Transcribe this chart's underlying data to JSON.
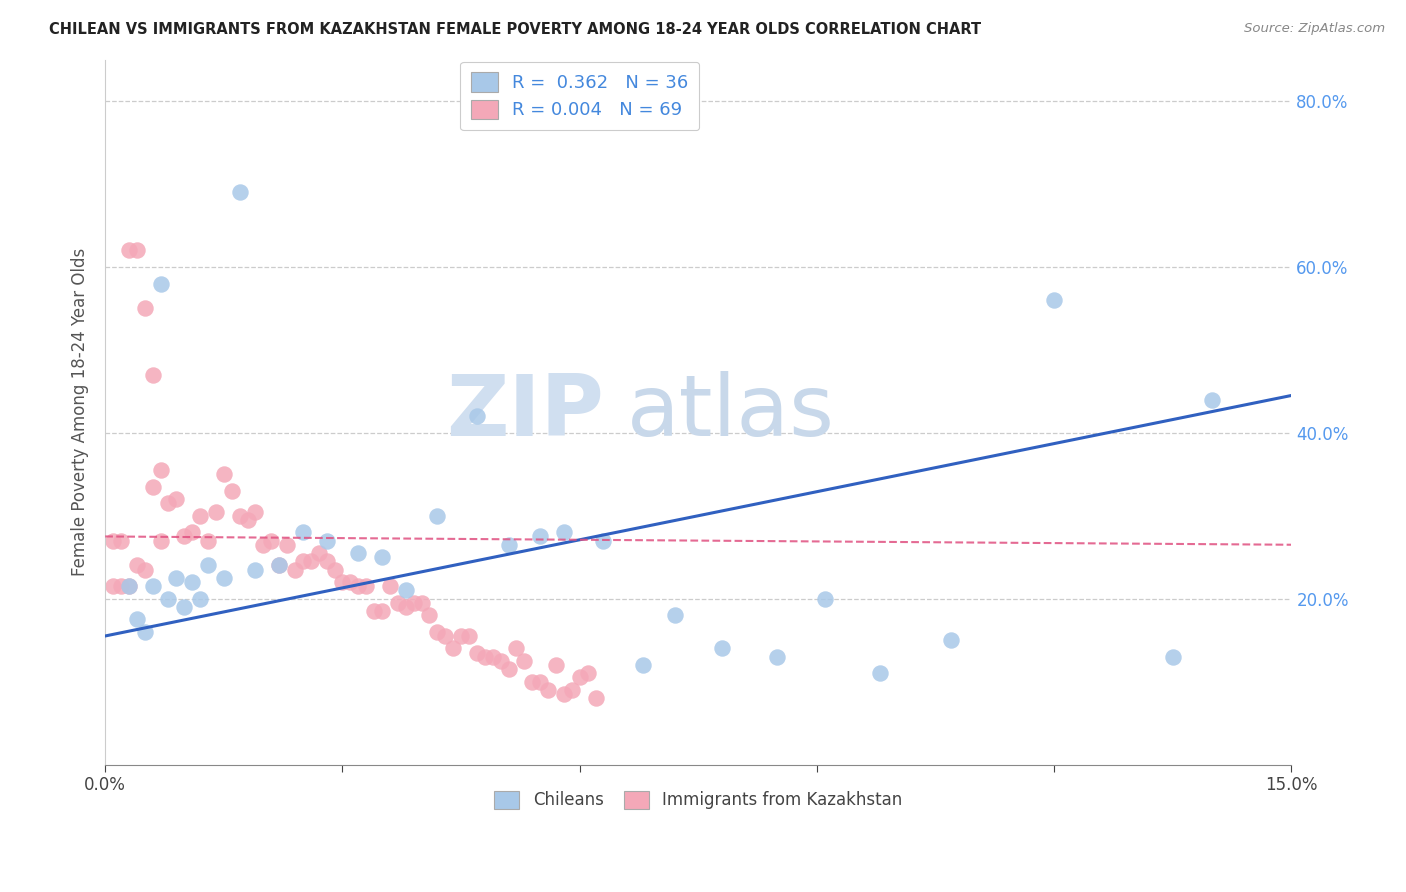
{
  "title": "CHILEAN VS IMMIGRANTS FROM KAZAKHSTAN FEMALE POVERTY AMONG 18-24 YEAR OLDS CORRELATION CHART",
  "source": "Source: ZipAtlas.com",
  "ylabel_label": "Female Poverty Among 18-24 Year Olds",
  "chileans_R": "0.362",
  "chileans_N": "36",
  "immigrants_R": "0.004",
  "immigrants_N": "69",
  "blue_color": "#a8c8e8",
  "pink_color": "#f4a8b8",
  "blue_line_color": "#3060c0",
  "pink_line_color": "#e05080",
  "watermark_zip": "ZIP",
  "watermark_atlas": "atlas",
  "xlim": [
    0.0,
    0.15
  ],
  "ylim": [
    0.0,
    0.85
  ],
  "blue_x": [
    0.017,
    0.007,
    0.003,
    0.009,
    0.011,
    0.013,
    0.006,
    0.008,
    0.004,
    0.005,
    0.01,
    0.012,
    0.015,
    0.019,
    0.022,
    0.025,
    0.028,
    0.032,
    0.035,
    0.038,
    0.042,
    0.047,
    0.051,
    0.055,
    0.058,
    0.063,
    0.068,
    0.072,
    0.078,
    0.085,
    0.091,
    0.098,
    0.107,
    0.12,
    0.135,
    0.14
  ],
  "blue_y": [
    0.69,
    0.58,
    0.215,
    0.225,
    0.22,
    0.24,
    0.215,
    0.2,
    0.175,
    0.16,
    0.19,
    0.2,
    0.225,
    0.235,
    0.24,
    0.28,
    0.27,
    0.255,
    0.25,
    0.21,
    0.3,
    0.42,
    0.265,
    0.275,
    0.28,
    0.27,
    0.12,
    0.18,
    0.14,
    0.13,
    0.2,
    0.11,
    0.15,
    0.56,
    0.13,
    0.44
  ],
  "pink_x": [
    0.001,
    0.002,
    0.003,
    0.004,
    0.005,
    0.006,
    0.007,
    0.001,
    0.002,
    0.003,
    0.004,
    0.005,
    0.006,
    0.007,
    0.008,
    0.009,
    0.01,
    0.011,
    0.012,
    0.013,
    0.014,
    0.015,
    0.016,
    0.017,
    0.018,
    0.019,
    0.02,
    0.021,
    0.022,
    0.023,
    0.024,
    0.025,
    0.026,
    0.027,
    0.028,
    0.029,
    0.03,
    0.031,
    0.032,
    0.033,
    0.034,
    0.035,
    0.036,
    0.037,
    0.038,
    0.039,
    0.04,
    0.041,
    0.042,
    0.043,
    0.044,
    0.045,
    0.046,
    0.047,
    0.048,
    0.049,
    0.05,
    0.051,
    0.052,
    0.053,
    0.054,
    0.055,
    0.056,
    0.057,
    0.058,
    0.059,
    0.06,
    0.061,
    0.062
  ],
  "pink_y": [
    0.27,
    0.27,
    0.62,
    0.62,
    0.55,
    0.47,
    0.355,
    0.215,
    0.215,
    0.215,
    0.24,
    0.235,
    0.335,
    0.27,
    0.315,
    0.32,
    0.275,
    0.28,
    0.3,
    0.27,
    0.305,
    0.35,
    0.33,
    0.3,
    0.295,
    0.305,
    0.265,
    0.27,
    0.24,
    0.265,
    0.235,
    0.245,
    0.245,
    0.255,
    0.245,
    0.235,
    0.22,
    0.22,
    0.215,
    0.215,
    0.185,
    0.185,
    0.215,
    0.195,
    0.19,
    0.195,
    0.195,
    0.18,
    0.16,
    0.155,
    0.14,
    0.155,
    0.155,
    0.135,
    0.13,
    0.13,
    0.125,
    0.115,
    0.14,
    0.125,
    0.1,
    0.1,
    0.09,
    0.12,
    0.085,
    0.09,
    0.105,
    0.11,
    0.08
  ],
  "blue_trend_x": [
    0.0,
    0.15
  ],
  "blue_trend_y": [
    0.155,
    0.445
  ],
  "pink_trend_x": [
    0.0,
    0.15
  ],
  "pink_trend_y": [
    0.275,
    0.265
  ]
}
